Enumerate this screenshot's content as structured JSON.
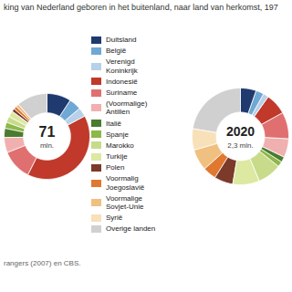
{
  "chart_data": [
    {
      "type": "pie",
      "title": "king van Nederland geboren in het buitenland, naar land van herkomst, 197",
      "caption": "rangers (2007) en CBS.",
      "annotations": [
        "71",
        "mln."
      ],
      "categories": [
        "Duitsland",
        "België",
        "Verenigd\nKoninkrijk",
        "Indonesië",
        "Suriname",
        "(Voormalige)\nAntillen",
        "Italië",
        "Spanje",
        "Marokko",
        "Turkije",
        "Polen",
        "Voormalig\nJoegoslavië",
        "Voormalige\nSovjet-Unie",
        "Syrië",
        "Overige landen"
      ],
      "values": [
        8,
        4,
        3,
        35,
        10,
        5,
        3,
        2,
        2,
        2,
        1,
        1,
        1,
        0,
        10
      ],
      "colors": [
        "#1f3a6e",
        "#6fa8d4",
        "#b8d0e8",
        "#c0392b",
        "#e07070",
        "#f0b0b0",
        "#4a7c2e",
        "#8db84a",
        "#c8db8a",
        "#dde8a0",
        "#7b3a2a",
        "#e07830",
        "#f0c080",
        "#f8e0b8",
        "#d0d0d0"
      ],
      "legend": "right"
    },
    {
      "type": "pie",
      "annotations": [
        "2020",
        "2,3 mln."
      ],
      "categories": [
        "Duitsland",
        "België",
        "Verenigd\nKoninkrijk",
        "Indonesië",
        "Suriname",
        "(Voormalige)\nAntillen",
        "Italië",
        "Spanje",
        "Marokko",
        "Turkije",
        "Polen",
        "Voormalig\nJoegoslavië",
        "Voormalige\nSovjet-Unie",
        "Syrië",
        "Overige landen"
      ],
      "values": [
        6,
        3,
        2,
        8,
        10,
        7,
        2,
        2,
        9,
        10,
        7,
        5,
        8,
        8,
        25
      ],
      "colors": [
        "#1f3a6e",
        "#6fa8d4",
        "#b8d0e8",
        "#c0392b",
        "#e07070",
        "#f0b0b0",
        "#4a7c2e",
        "#8db84a",
        "#c8db8a",
        "#dde8a0",
        "#7b3a2a",
        "#e07830",
        "#f0c080",
        "#f8e0b8",
        "#d0d0d0"
      ]
    }
  ]
}
